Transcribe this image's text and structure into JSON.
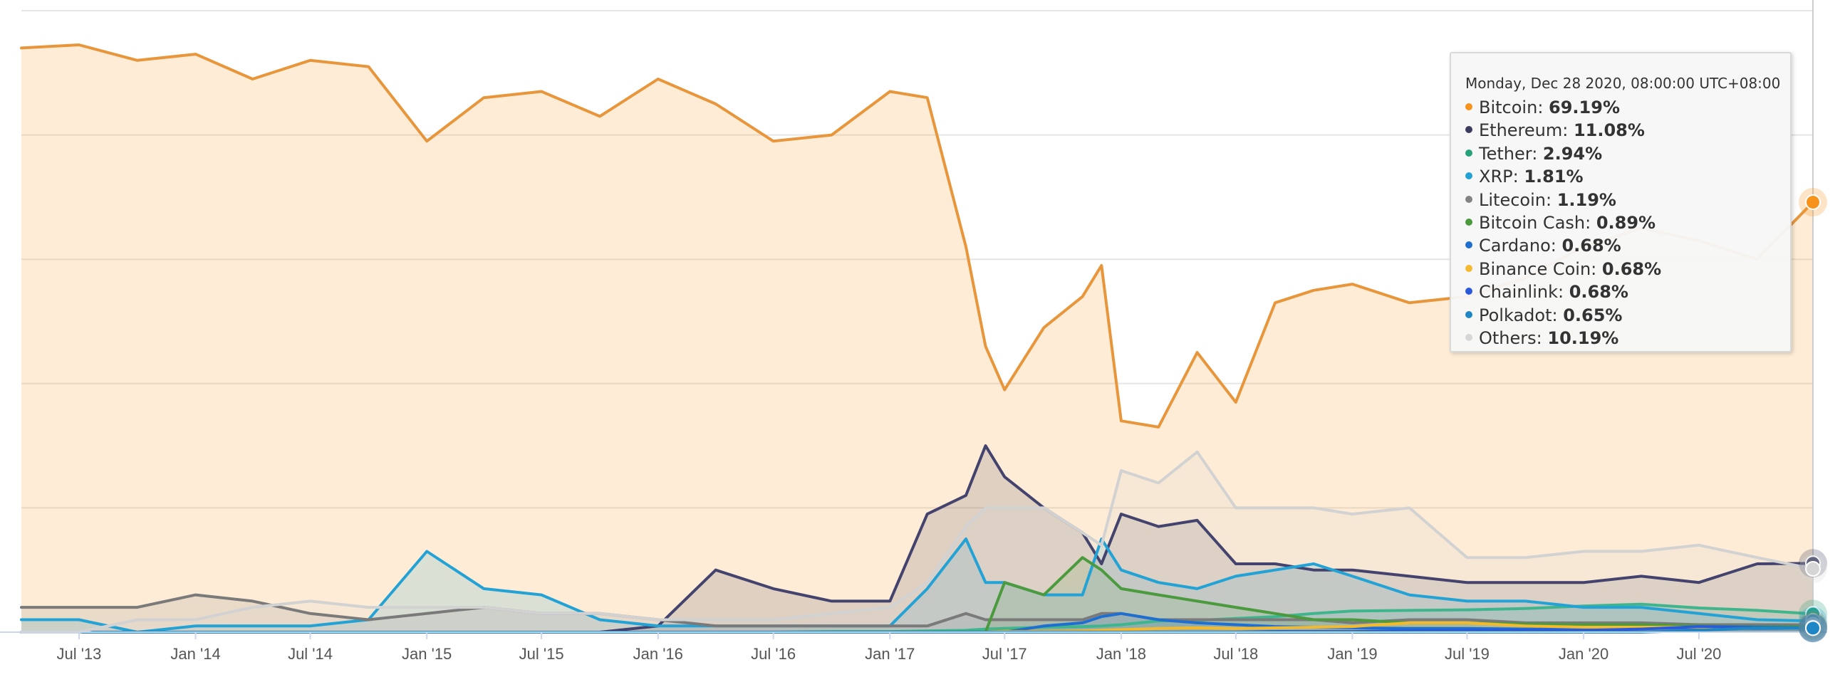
{
  "chart_data": {
    "type": "area",
    "title": "",
    "xlabel": "",
    "ylabel": "",
    "ylim": [
      0,
      100
    ],
    "y_unit": "%",
    "grid": true,
    "x_ticks": [
      "Jul '13",
      "Jan '14",
      "Jul '14",
      "Jan '15",
      "Jul '15",
      "Jan '16",
      "Jul '16",
      "Jan '17",
      "Jul '17",
      "Jan '18",
      "Jul '18",
      "Jan '19",
      "Jul '19",
      "Jan '20",
      "Jul '20"
    ],
    "x": [
      "2013-04",
      "2013-07",
      "2013-10",
      "2014-01",
      "2014-04",
      "2014-07",
      "2014-10",
      "2015-01",
      "2015-04",
      "2015-07",
      "2015-10",
      "2016-01",
      "2016-04",
      "2016-07",
      "2016-10",
      "2017-01",
      "2017-03",
      "2017-05",
      "2017-06",
      "2017-07",
      "2017-09",
      "2017-11",
      "2017-12",
      "2018-01",
      "2018-03",
      "2018-05",
      "2018-07",
      "2018-09",
      "2018-11",
      "2019-01",
      "2019-04",
      "2019-07",
      "2019-10",
      "2020-01",
      "2020-04",
      "2020-07",
      "2020-10",
      "2020-12-28"
    ],
    "series": [
      {
        "name": "Bitcoin",
        "color": "#f7931a",
        "line_color": "#e8963c",
        "values": [
          94,
          94.5,
          92,
          93,
          89,
          92,
          91,
          79,
          86,
          87,
          83,
          89,
          85,
          79,
          80,
          87,
          86,
          62,
          46,
          39,
          49,
          54,
          59,
          34,
          33,
          45,
          37,
          53,
          55,
          56,
          53,
          54,
          57,
          62,
          65,
          63,
          60,
          69.19
        ]
      },
      {
        "name": "Ethereum",
        "color": "#3c3c5f",
        "line_color": "#43436e",
        "values": [
          0,
          0,
          0,
          0,
          0,
          0,
          0,
          0,
          0,
          0,
          0,
          1,
          10,
          7,
          5,
          5,
          19,
          22,
          30,
          25,
          20,
          16,
          11,
          19,
          17,
          18,
          11,
          11,
          10,
          10,
          9,
          8,
          8,
          8,
          9,
          8,
          11,
          11.08
        ]
      },
      {
        "name": "Tether",
        "color": "#26a17b",
        "line_color": "#3fb58e",
        "values": [
          0,
          0,
          0,
          0,
          0,
          0,
          0,
          0,
          0,
          0,
          0,
          0,
          0,
          0,
          0.1,
          0.1,
          0.2,
          0.3,
          0.5,
          0.6,
          0.8,
          0.9,
          1.0,
          1.2,
          1.8,
          1.9,
          2.2,
          2.5,
          3.0,
          3.4,
          3.5,
          3.6,
          3.8,
          4.2,
          4.5,
          3.9,
          3.5,
          2.94
        ]
      },
      {
        "name": "XRP",
        "color": "#23a2d6",
        "line_color": "#23a2d6",
        "values": [
          2,
          2,
          0,
          1,
          1,
          1,
          2,
          13,
          7,
          6,
          2,
          1,
          1,
          1,
          1,
          1,
          7,
          15,
          8,
          8,
          6,
          6,
          15,
          10,
          8,
          7,
          9,
          10,
          11,
          9,
          6,
          5,
          5,
          4,
          4,
          3,
          2,
          1.81
        ]
      },
      {
        "name": "Litecoin",
        "color": "#838383",
        "line_color": "#7a7a7a",
        "values": [
          4,
          4,
          4,
          6,
          5,
          3,
          2,
          3,
          4,
          3,
          3,
          2,
          1,
          1,
          1,
          1,
          1,
          3,
          2,
          2,
          2,
          2,
          3,
          3,
          2,
          2,
          2,
          2,
          2,
          1.5,
          2,
          2,
          1.5,
          1.5,
          1.5,
          1.2,
          1.2,
          1.19
        ]
      },
      {
        "name": "Bitcoin Cash",
        "color": "#4b9a3e",
        "line_color": "#4b9a3e",
        "values": [
          0,
          0,
          0,
          0,
          0,
          0,
          0,
          0,
          0,
          0,
          0,
          0,
          0,
          0,
          0,
          0,
          0,
          0,
          0,
          8,
          6,
          12,
          10,
          7,
          6,
          5,
          4,
          3,
          2,
          2,
          1.5,
          1.5,
          1.3,
          1.2,
          1.2,
          1.0,
          0.9,
          0.89
        ]
      },
      {
        "name": "Cardano",
        "color": "#1f6fd1",
        "line_color": "#1f6fd1",
        "values": [
          0,
          0,
          0,
          0,
          0,
          0,
          0,
          0,
          0,
          0,
          0,
          0,
          0,
          0,
          0,
          0,
          0,
          0,
          0,
          0,
          1,
          1.5,
          2.5,
          3,
          2,
          1.5,
          1.2,
          0.9,
          0.8,
          0.7,
          0.6,
          0.6,
          0.5,
          0.5,
          0.6,
          0.7,
          0.6,
          0.68
        ]
      },
      {
        "name": "Binance Coin",
        "color": "#f3ba2f",
        "line_color": "#f3ba2f",
        "values": [
          0,
          0,
          0,
          0,
          0,
          0,
          0,
          0,
          0,
          0,
          0,
          0,
          0,
          0,
          0,
          0,
          0,
          0,
          0,
          0.1,
          0.1,
          0.2,
          0.3,
          0.4,
          0.6,
          0.7,
          0.6,
          0.7,
          0.8,
          0.9,
          1.5,
          1.5,
          1.0,
          0.8,
          0.8,
          0.8,
          0.7,
          0.68
        ]
      },
      {
        "name": "Chainlink",
        "color": "#2a5ada",
        "line_color": "#2a5ada",
        "values": [
          0,
          0,
          0,
          0,
          0,
          0,
          0,
          0,
          0,
          0,
          0,
          0,
          0,
          0,
          0,
          0,
          0,
          0,
          0,
          0,
          0,
          0,
          0,
          0,
          0,
          0,
          0,
          0.1,
          0.1,
          0.1,
          0.2,
          0.3,
          0.3,
          0.3,
          0.5,
          0.9,
          0.8,
          0.68
        ]
      },
      {
        "name": "Polkadot",
        "color": "#1f86c6",
        "line_color": "#1f86c6",
        "values": [
          0,
          0,
          0,
          0,
          0,
          0,
          0,
          0,
          0,
          0,
          0,
          0,
          0,
          0,
          0,
          0,
          0,
          0,
          0,
          0,
          0,
          0,
          0,
          0,
          0,
          0,
          0,
          0,
          0,
          0,
          0,
          0,
          0,
          0,
          0,
          0.3,
          0.7,
          0.65
        ]
      },
      {
        "name": "Others",
        "color": "#d6d6d6",
        "line_color": "#d2d2d2",
        "values": [
          0,
          0,
          2,
          2,
          4,
          5,
          4,
          4,
          4,
          3,
          3,
          2,
          2,
          2,
          3,
          4,
          8,
          17,
          20,
          20,
          20,
          16,
          14,
          26,
          24,
          29,
          20,
          20,
          20,
          19,
          20,
          12,
          12,
          13,
          13,
          14,
          12,
          10.19
        ]
      }
    ],
    "tooltip": {
      "header": "Monday, Dec 28 2020, 08:00:00 UTC+08:00",
      "rows": [
        {
          "name": "Bitcoin",
          "value": "69.19%",
          "color": "#f7931a"
        },
        {
          "name": "Ethereum",
          "value": "11.08%",
          "color": "#3c3c5f"
        },
        {
          "name": "Tether",
          "value": "2.94%",
          "color": "#26a17b"
        },
        {
          "name": "XRP",
          "value": "1.81%",
          "color": "#23a2d6"
        },
        {
          "name": "Litecoin",
          "value": "1.19%",
          "color": "#838383"
        },
        {
          "name": "Bitcoin Cash",
          "value": "0.89%",
          "color": "#4b9a3e"
        },
        {
          "name": "Cardano",
          "value": "0.68%",
          "color": "#1f6fd1"
        },
        {
          "name": "Binance Coin",
          "value": "0.68%",
          "color": "#f3ba2f"
        },
        {
          "name": "Chainlink",
          "value": "0.68%",
          "color": "#2a5ada"
        },
        {
          "name": "Polkadot",
          "value": "0.65%",
          "color": "#1f86c6"
        },
        {
          "name": "Others",
          "value": "10.19%",
          "color": "#d6d6d6"
        }
      ]
    }
  }
}
